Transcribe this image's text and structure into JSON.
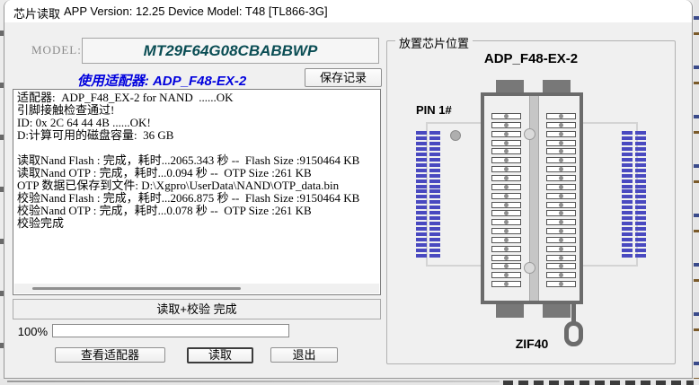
{
  "window": {
    "title": "芯片读取",
    "version_text": "APP Version: 12.25 Device Model: T48 [TL866-3G]"
  },
  "left_panel": {
    "model_label": "MODEL:",
    "model_value": "MT29F64G08CBABBWP",
    "adapter_caption": "使用适配器: ADP_F48-EX-2",
    "save_button": "保存记录",
    "log_lines": [
      "适配器:  ADP_F48_EX-2 for NAND  ......OK",
      "引脚接触检查通过!",
      "ID: 0x 2C 64 44 4B ......OK!",
      "D:计算可用的磁盘容量:  36 GB",
      "",
      "读取Nand Flash : 完成，耗时...2065.343 秒 --  Flash Size :9150464 KB",
      "读取Nand OTP : 完成，耗时...0.094 秒 --  OTP Size :261 KB",
      "OTP 数据已保存到文件: D:\\Xgpro\\UserData\\NAND\\OTP_data.bin",
      "校验Nand Flash : 完成，耗时...2066.875 秒 --  Flash Size :9150464 KB",
      "校验Nand OTP : 完成，耗时...0.078 秒 --  OTP Size :261 KB",
      "校验完成"
    ],
    "status_text": "读取+校验 完成",
    "progress_label": "100%",
    "buttons": {
      "view_adapter": "查看适配器",
      "read": "读取",
      "exit": "退出"
    }
  },
  "right_panel": {
    "group_title": "放置芯片位置",
    "adapter_name": "ADP_F48-EX-2",
    "pin1_label": "PIN 1#",
    "socket_label": "ZIF40",
    "zif_rows_per_side": 20,
    "chip_pins_per_side": 24
  },
  "colors": {
    "model_text": "#0a4d54",
    "adapter_text": "#0000dd",
    "chip_pin_blue": "#4949c0",
    "socket_gray": "#6b6b6b"
  }
}
